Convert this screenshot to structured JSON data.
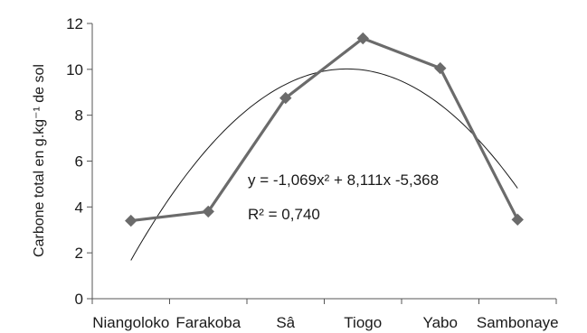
{
  "chart_data": {
    "type": "line",
    "categories": [
      "Niangoloko",
      "Farakoba",
      "Sâ",
      "Tiogo",
      "Yabo",
      "Sambonaye"
    ],
    "series": [
      {
        "values": [
          3.4,
          3.8,
          8.75,
          11.35,
          10.05,
          3.45
        ]
      }
    ],
    "trendline": {
      "type": "polynomial",
      "order": 2,
      "a": -1.069,
      "b": 8.111,
      "c": -5.368,
      "equation": "y = -1,069x² + 8,111x -5,368",
      "r_squared": "R² = 0,740"
    },
    "ylabel": "Carbone total en g.kg⁻¹ de sol",
    "xlabel": "",
    "ylim": [
      0,
      12
    ],
    "yticks": [
      0,
      2,
      4,
      6,
      8,
      10,
      12
    ],
    "grid": false,
    "legend": "none"
  }
}
